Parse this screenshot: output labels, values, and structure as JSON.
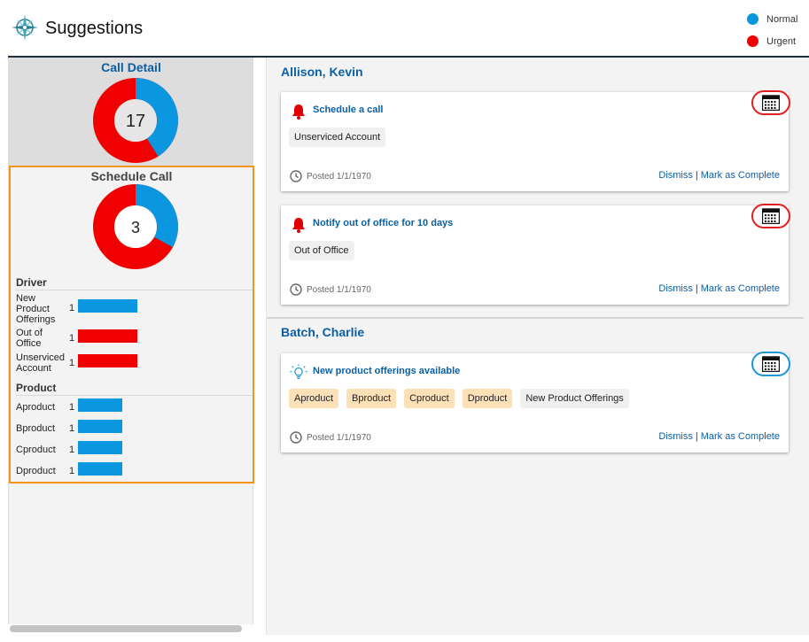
{
  "header": {
    "title": "Suggestions",
    "logo_icon": "compass-rose-icon",
    "legend": [
      {
        "label": "Normal",
        "color": "#0a97e0"
      },
      {
        "label": "Urgent",
        "color": "#f00000"
      }
    ]
  },
  "sidebar": {
    "call_detail": {
      "title": "Call Detail",
      "total": "17",
      "segments": [
        {
          "label": "Normal",
          "fraction": 0.41,
          "color": "#0a97e0"
        },
        {
          "label": "Urgent",
          "fraction": 0.59,
          "color": "#f00000"
        }
      ]
    },
    "schedule_call": {
      "title": "Schedule Call",
      "total": "3",
      "segments": [
        {
          "label": "Normal",
          "fraction": 0.33,
          "color": "#0a97e0"
        },
        {
          "label": "Urgent",
          "fraction": 0.67,
          "color": "#f00000"
        }
      ],
      "driver": {
        "label": "Driver",
        "rows": [
          {
            "label": "New Product Offerings",
            "count": "1",
            "color": "#0a97e0"
          },
          {
            "label": "Out of Office",
            "count": "1",
            "color": "#f00000"
          },
          {
            "label": "Unserviced Account",
            "count": "1",
            "color": "#f00000"
          }
        ]
      },
      "product": {
        "label": "Product",
        "rows": [
          {
            "label": "Aproduct",
            "count": "1",
            "color": "#0a97e0"
          },
          {
            "label": "Bproduct",
            "count": "1",
            "color": "#0a97e0"
          },
          {
            "label": "Cproduct",
            "count": "1",
            "color": "#0a97e0"
          },
          {
            "label": "Dproduct",
            "count": "1",
            "color": "#0a97e0"
          }
        ]
      }
    }
  },
  "main": {
    "groups": [
      {
        "name": "Allison, Kevin",
        "cards": [
          {
            "icon": "bell-icon",
            "title": "Schedule a call",
            "tags": [
              "Unserviced Account"
            ],
            "posted": "Posted 1/1/1970",
            "urgency": "urgent"
          },
          {
            "icon": "bell-icon",
            "title": "Notify out of office for 10 days",
            "tags": [
              "Out of Office"
            ],
            "posted": "Posted 1/1/1970",
            "urgency": "urgent"
          }
        ]
      },
      {
        "name": "Batch, Charlie",
        "cards": [
          {
            "icon": "lightbulb-icon",
            "title": "New product offerings available",
            "product_tags": [
              "Aproduct",
              "Bproduct",
              "Cproduct",
              "Dproduct"
            ],
            "tags": [
              "New Product Offerings"
            ],
            "posted": "Posted 1/1/1970",
            "urgency": "normal"
          }
        ]
      }
    ],
    "actions": {
      "dismiss": "Dismiss",
      "separator": "|",
      "complete": "Mark as Complete"
    }
  }
}
